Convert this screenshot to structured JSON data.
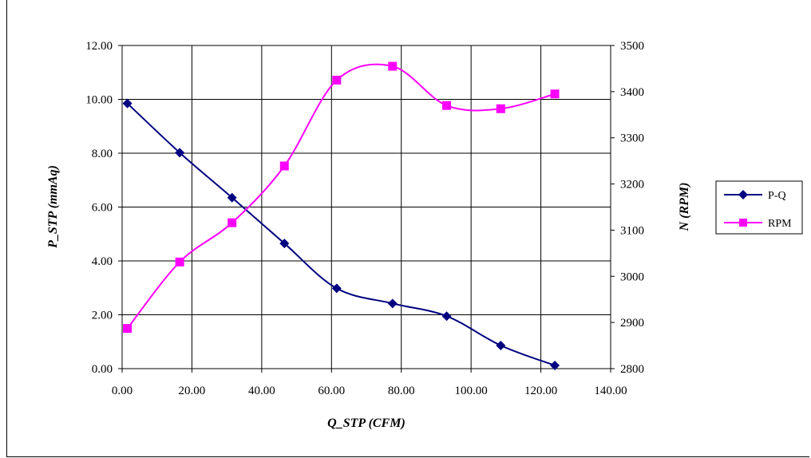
{
  "chart_data": {
    "type": "line",
    "title": "",
    "xlabel": "Q_STP (CFM)",
    "ylabel": "P_STP (mmAq)",
    "y2label": "N (RPM)",
    "xlim": [
      0,
      140
    ],
    "ylim": [
      0,
      12
    ],
    "y2lim": [
      2800,
      3500
    ],
    "grid": true,
    "legend_position": "right",
    "x_tick_labels": [
      "0.00",
      "20.00",
      "40.00",
      "60.00",
      "80.00",
      "100.00",
      "120.00",
      "140.00"
    ],
    "y_tick_labels": [
      "0.00",
      "2.00",
      "4.00",
      "6.00",
      "8.00",
      "10.00",
      "12.00"
    ],
    "y2_tick_labels": [
      "2800",
      "2900",
      "3000",
      "3100",
      "3200",
      "3300",
      "3400",
      "3500"
    ],
    "series": [
      {
        "name": "P-Q",
        "axis": "left",
        "marker": "diamond",
        "color": "#000080",
        "x": [
          1.5,
          16.5,
          31.5,
          46.5,
          61.5,
          77.5,
          93.0,
          108.5,
          124.0
        ],
        "values": [
          9.85,
          8.02,
          6.35,
          4.65,
          2.98,
          2.42,
          1.95,
          0.86,
          0.12
        ]
      },
      {
        "name": "RPM",
        "axis": "right",
        "marker": "square",
        "color": "#ff00ff",
        "x": [
          1.5,
          16.5,
          31.5,
          46.5,
          61.5,
          77.5,
          93.0,
          108.5,
          124.0
        ],
        "values": [
          2887,
          3031,
          3116,
          3239,
          3425,
          3455,
          3370,
          3363,
          3395
        ]
      }
    ]
  }
}
